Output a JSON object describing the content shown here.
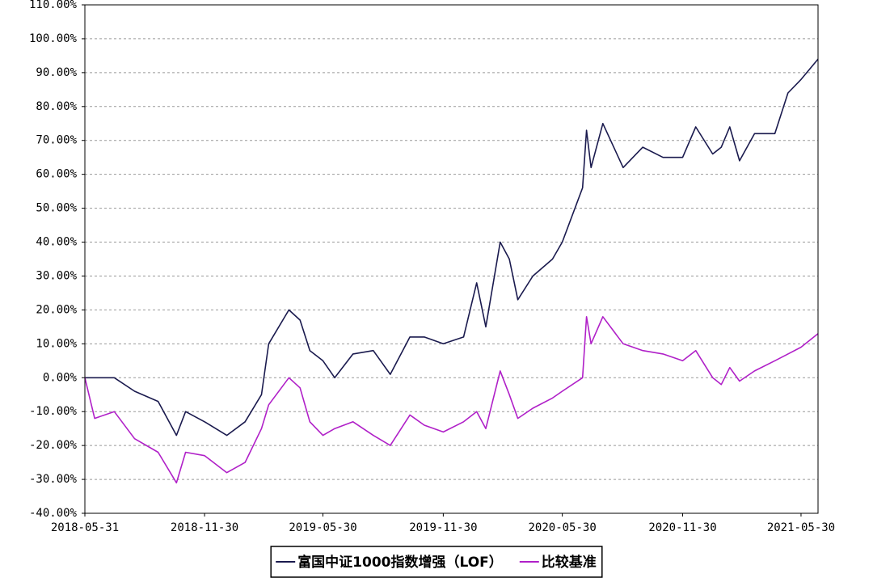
{
  "chart_data": {
    "type": "line",
    "x": [
      "2018-05-31",
      "2018-06-15",
      "2018-07-15",
      "2018-08-15",
      "2018-09-20",
      "2018-10-18",
      "2018-11-01",
      "2018-11-30",
      "2019-01-03",
      "2019-01-31",
      "2019-02-25",
      "2019-03-08",
      "2019-04-08",
      "2019-04-25",
      "2019-05-10",
      "2019-05-30",
      "2019-06-17",
      "2019-07-15",
      "2019-08-15",
      "2019-09-10",
      "2019-10-10",
      "2019-11-01",
      "2019-11-30",
      "2019-12-31",
      "2020-01-20",
      "2020-02-03",
      "2020-02-25",
      "2020-03-10",
      "2020-03-23",
      "2020-04-15",
      "2020-05-15",
      "2020-05-30",
      "2020-06-30",
      "2020-07-06",
      "2020-07-13",
      "2020-07-31",
      "2020-08-31",
      "2020-09-30",
      "2020-10-31",
      "2020-11-30",
      "2020-12-20",
      "2021-01-15",
      "2021-01-28",
      "2021-02-10",
      "2021-02-25",
      "2021-03-20",
      "2021-04-20",
      "2021-05-10",
      "2021-05-30",
      "2021-06-25"
    ],
    "series": [
      {
        "name": "富国中证1000指数增强（LOF）",
        "color": "#1a1a4e",
        "values": [
          0,
          0,
          0,
          -4,
          -7,
          -17,
          -10,
          -13,
          -17,
          -13,
          -5,
          10,
          20,
          17,
          8,
          5,
          0,
          7,
          8,
          1,
          12,
          12,
          10,
          12,
          28,
          15,
          40,
          35,
          23,
          30,
          35,
          40,
          56,
          73,
          62,
          75,
          62,
          68,
          65,
          65,
          74,
          66,
          68,
          74,
          64,
          72,
          72,
          84,
          88,
          94
        ]
      },
      {
        "name": "比较基准",
        "color": "#b020c8",
        "values": [
          0,
          -12,
          -10,
          -18,
          -22,
          -31,
          -22,
          -23,
          -28,
          -25,
          -15,
          -8,
          0,
          -3,
          -13,
          -17,
          -15,
          -13,
          -17,
          -20,
          -11,
          -14,
          -16,
          -13,
          -10,
          -15,
          2,
          -5,
          -12,
          -9,
          -6,
          -4,
          0,
          18,
          10,
          18,
          10,
          8,
          7,
          5,
          8,
          0,
          -2,
          3,
          -1,
          2,
          5,
          7,
          9,
          13
        ]
      }
    ],
    "xlim": [
      "2018-05-31",
      "2021-06-25"
    ],
    "xticks": [
      "2018-05-31",
      "2018-11-30",
      "2019-05-30",
      "2019-11-30",
      "2020-05-30",
      "2020-11-30",
      "2021-05-30"
    ],
    "ylim": [
      -40,
      110
    ],
    "yticks": [
      {
        "value": -40,
        "label": "-40.00%"
      },
      {
        "value": -30,
        "label": "-30.00%"
      },
      {
        "value": -20,
        "label": "-20.00%"
      },
      {
        "value": -10,
        "label": "-10.00%"
      },
      {
        "value": 0,
        "label": "0.00%"
      },
      {
        "value": 10,
        "label": "10.00%"
      },
      {
        "value": 20,
        "label": "20.00%"
      },
      {
        "value": 30,
        "label": "30.00%"
      },
      {
        "value": 40,
        "label": "40.00%"
      },
      {
        "value": 50,
        "label": "50.00%"
      },
      {
        "value": 60,
        "label": "60.00%"
      },
      {
        "value": 70,
        "label": "70.00%"
      },
      {
        "value": 80,
        "label": "80.00%"
      },
      {
        "value": 90,
        "label": "90.00%"
      },
      {
        "value": 100,
        "label": "100.00%"
      },
      {
        "value": 110,
        "label": "110.00%"
      }
    ],
    "grid": true
  }
}
